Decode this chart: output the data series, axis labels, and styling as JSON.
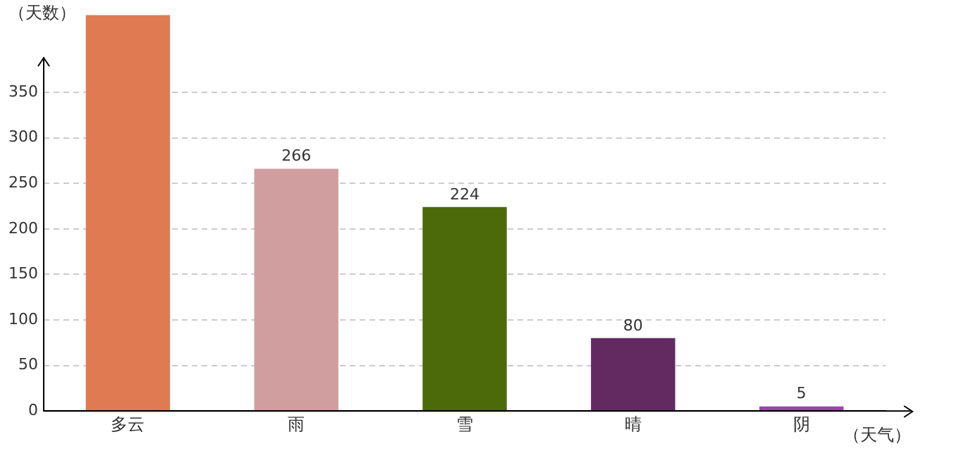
{
  "chart_data": {
    "type": "bar",
    "xlabel": "（天气）",
    "ylabel": "（天数）",
    "categories": [
      "多云",
      "雨",
      "雪",
      "晴",
      "阴"
    ],
    "values": [
      435,
      266,
      224,
      80,
      5
    ],
    "colors": [
      "#e07a52",
      "#d19ea0",
      "#4c6a0a",
      "#632a62",
      "#9b44ad"
    ],
    "value_labels": [
      null,
      "266",
      "224",
      "80",
      "5"
    ],
    "ylim": [
      0,
      435
    ],
    "yticks": [
      0,
      50,
      100,
      150,
      200,
      250,
      300,
      350
    ],
    "grid": "y",
    "legend": false
  }
}
